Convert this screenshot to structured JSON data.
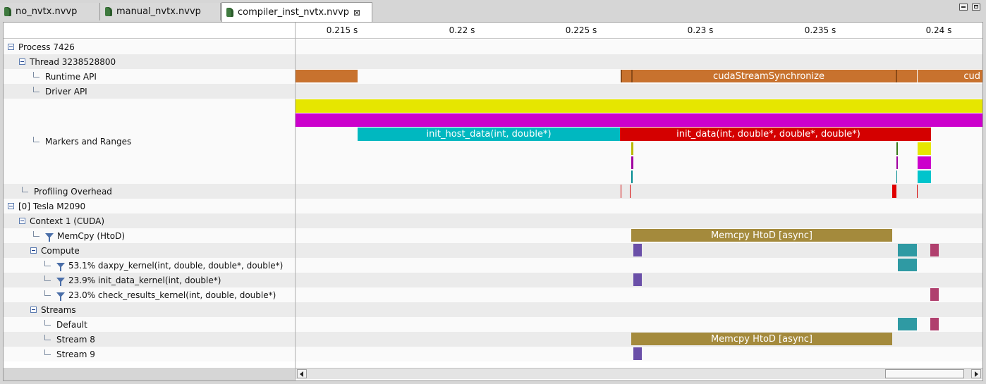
{
  "tabs": [
    {
      "label": "no_nvtx.nvvp",
      "active": false
    },
    {
      "label": "manual_nvtx.nvvp",
      "active": false
    },
    {
      "label": "compiler_inst_nvtx.nvvp",
      "active": true
    }
  ],
  "close_glyph": "⊠",
  "ruler": {
    "ticks": [
      "0.215 s",
      "0.22 s",
      "0.225 s",
      "0.23 s",
      "0.235 s",
      "0.24 s"
    ]
  },
  "tree": [
    {
      "label": "Process 7426",
      "kind": "expander",
      "level": 0
    },
    {
      "label": "Thread 3238528800",
      "kind": "expander",
      "level": 1
    },
    {
      "label": "Runtime API",
      "kind": "branch",
      "level": 2
    },
    {
      "label": "Driver API",
      "kind": "branch",
      "level": 2
    },
    {
      "label": "Markers and Ranges",
      "kind": "branch",
      "level": 2
    },
    {
      "label": "Profiling Overhead",
      "kind": "branch",
      "level": 1
    },
    {
      "label": "[0] Tesla M2090",
      "kind": "expander",
      "level": 0
    },
    {
      "label": "Context 1 (CUDA)",
      "kind": "expander",
      "level": 1
    },
    {
      "label": "MemCpy (HtoD)",
      "kind": "filter",
      "level": 2
    },
    {
      "label": "Compute",
      "kind": "expander",
      "level": 2
    },
    {
      "label": "53.1% daxpy_kernel(int, double, double*, double*)",
      "kind": "filter",
      "level": 3
    },
    {
      "label": "23.9% init_data_kernel(int, double*)",
      "kind": "filter",
      "level": 3
    },
    {
      "label": "23.0% check_results_kernel(int, double, double*)",
      "kind": "filter",
      "level": 3
    },
    {
      "label": "Streams",
      "kind": "expander",
      "level": 2
    },
    {
      "label": "Default",
      "kind": "branch",
      "level": 3
    },
    {
      "label": "Stream 8",
      "kind": "branch",
      "level": 3
    },
    {
      "label": "Stream 9",
      "kind": "branch",
      "level": 3
    }
  ],
  "bars": {
    "runtime_label": "cudaStreamSynchronize",
    "runtime_label_cut": "cud",
    "init_host_label": "init_host_data(int, double*)",
    "init_data_label": "init_data(int, double*, double*, double*)",
    "memcpy_label": "Memcpy HtoD [async]",
    "stream8_label": "Memcpy HtoD [async]"
  },
  "colors": {
    "runtime": "#c8722e",
    "yellow": "#e6e600",
    "magenta": "#cc00cc",
    "cyan": "#00b8c0",
    "red": "#d40000",
    "memcpy": "#a48a3c",
    "compute_purple": "#6a4fa8",
    "compute_teal": "#2f9aa3",
    "compute_rose": "#b0406e"
  }
}
